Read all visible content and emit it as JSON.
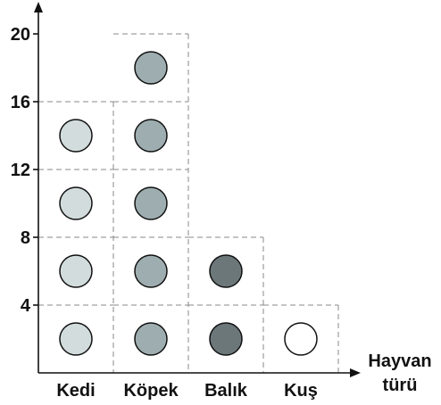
{
  "chart_data": {
    "type": "pictograph",
    "categories": [
      "Kedi",
      "Köpek",
      "Balık",
      "Kuş"
    ],
    "values": [
      14,
      18,
      6,
      2
    ],
    "symbol_unit": 4,
    "symbol_counts": [
      4,
      5,
      2,
      1
    ],
    "symbol_colors": [
      "#d2dcdc",
      "#9eaeb0",
      "#6c777a",
      "#ffffff"
    ],
    "y_ticks": [
      4,
      8,
      12,
      16,
      20
    ],
    "ylim": [
      0,
      20
    ],
    "xlabel": [
      "Hayvan",
      "türü"
    ],
    "ylabel": ""
  }
}
